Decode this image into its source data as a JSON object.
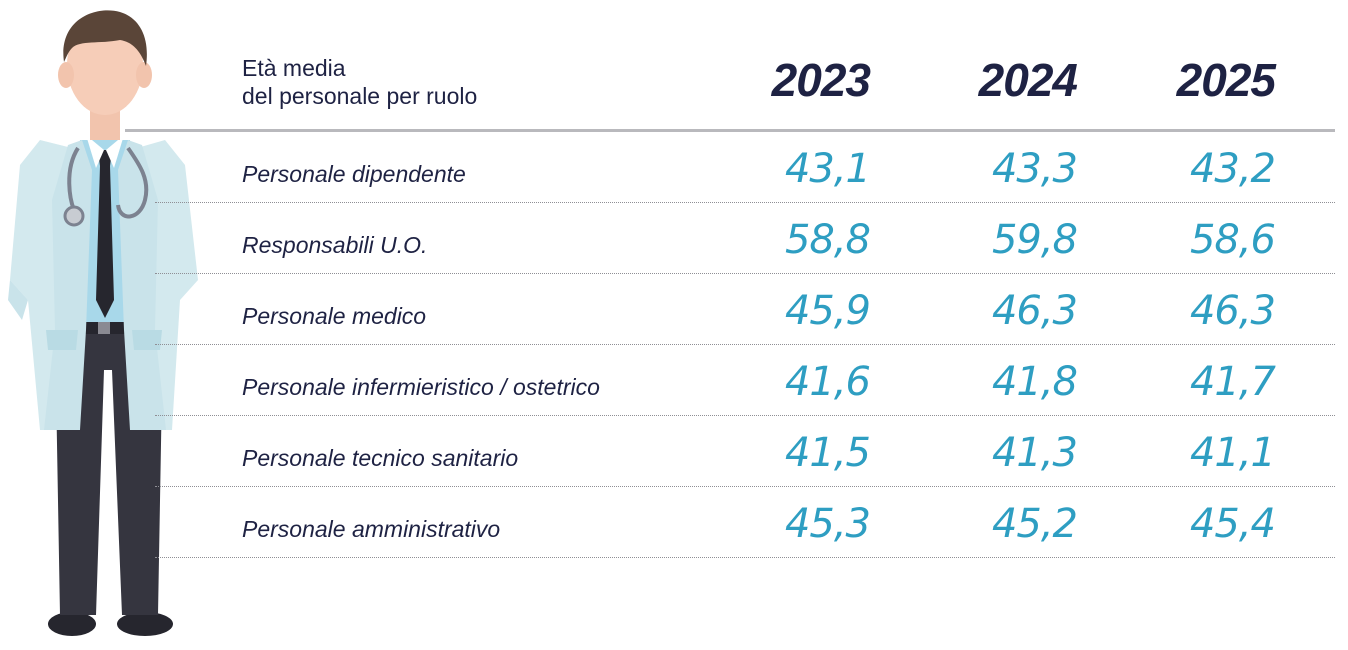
{
  "table": {
    "title_line1": "Età media",
    "title_line2": "del personale per ruolo",
    "years": [
      "2023",
      "2024",
      "2025"
    ],
    "rows": [
      {
        "label": "Personale dipendente",
        "values": [
          "43,1",
          "43,3",
          "43,2"
        ]
      },
      {
        "label": "Responsabili U.O.",
        "values": [
          "58,8",
          "59,8",
          "58,6"
        ]
      },
      {
        "label": "Personale medico",
        "values": [
          "45,9",
          "46,3",
          "46,3"
        ]
      },
      {
        "label": "Personale infermieristico / ostetrico",
        "values": [
          "41,6",
          "41,8",
          "41,7"
        ]
      },
      {
        "label": "Personale tecnico sanitario",
        "values": [
          "41,5",
          "41,3",
          "41,1"
        ]
      },
      {
        "label": "Personale amministrativo",
        "values": [
          "45,3",
          "45,2",
          "45,4"
        ]
      }
    ]
  },
  "colors": {
    "heading": "#1e2243",
    "values": "#2e9ec2",
    "divider": "#b9b9bd"
  },
  "illustration": {
    "icon": "doctor-illustration"
  }
}
